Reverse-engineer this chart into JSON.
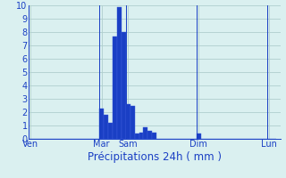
{
  "title": "",
  "xlabel": "Précipitations 24h ( mm )",
  "ylabel": "",
  "background_color": "#daf0f0",
  "bar_color": "#1a3fc4",
  "bar_edge_color": "#4060e0",
  "grid_color": "#b0cece",
  "axis_color": "#1a3fc4",
  "ylim": [
    0,
    10
  ],
  "yticks": [
    0,
    1,
    2,
    3,
    4,
    5,
    6,
    7,
    8,
    9,
    10
  ],
  "day_labels": [
    "Ven",
    "Mar",
    "Sam",
    "Dim",
    "Lun"
  ],
  "day_tick_positions": [
    0,
    16,
    22,
    38,
    54
  ],
  "bar_values": [
    0,
    0,
    0,
    0,
    0,
    0,
    0,
    0,
    0,
    0,
    0,
    0,
    0,
    0,
    0,
    0,
    2.3,
    1.8,
    1.2,
    7.7,
    9.9,
    8.0,
    2.6,
    2.5,
    0.4,
    0.5,
    0.9,
    0.6,
    0.5,
    0,
    0,
    0,
    0,
    0,
    0,
    0,
    0,
    0,
    0.4,
    0,
    0,
    0,
    0,
    0,
    0,
    0,
    0,
    0,
    0,
    0,
    0,
    0,
    0,
    0,
    0,
    0
  ],
  "xlim": [
    -0.5,
    56.5
  ],
  "figsize": [
    3.2,
    2.0
  ],
  "dpi": 100,
  "font_color": "#1a3fc4",
  "xlabel_fontsize": 8.5,
  "tick_fontsize": 7
}
